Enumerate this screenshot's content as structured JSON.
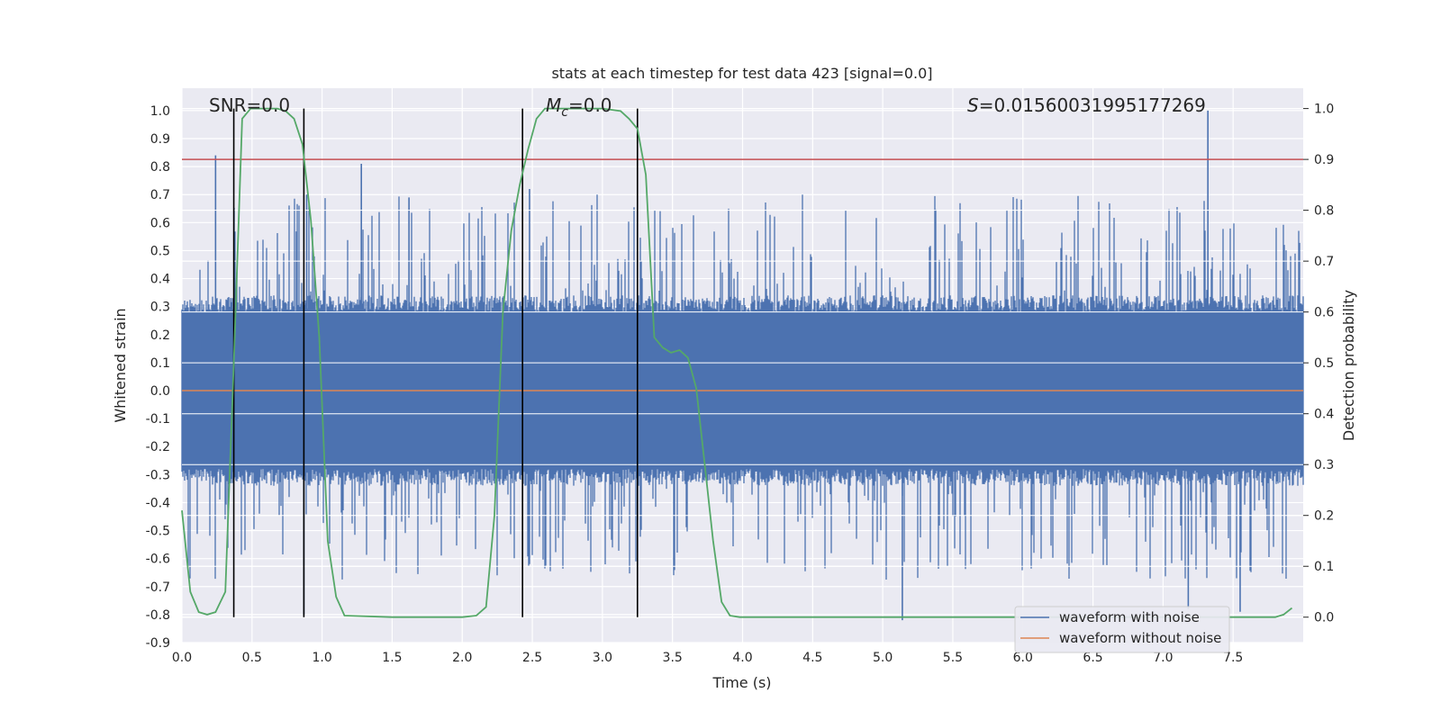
{
  "chart_data": {
    "type": "line",
    "title": "stats at each timestep for test data 423 [signal=0.0]",
    "xlabel": "Time (s)",
    "ylabel": "Whitened strain",
    "y2label": "Detection probability",
    "xlim": [
      0.0,
      8.0
    ],
    "ylim": [
      -0.9,
      1.08
    ],
    "y2lim": [
      -0.05,
      1.04
    ],
    "x_ticks": [
      "0.0",
      "0.5",
      "1.0",
      "1.5",
      "2.0",
      "2.5",
      "3.0",
      "3.5",
      "4.0",
      "4.5",
      "5.0",
      "5.5",
      "6.0",
      "6.5",
      "7.0",
      "7.5"
    ],
    "y_ticks": [
      "-0.9",
      "-0.8",
      "-0.7",
      "-0.6",
      "-0.5",
      "-0.4",
      "-0.3",
      "-0.2",
      "-0.1",
      "0.0",
      "0.1",
      "0.2",
      "0.3",
      "0.4",
      "0.5",
      "0.6",
      "0.7",
      "0.8",
      "0.9",
      "1.0"
    ],
    "y2_ticks": [
      "0.0",
      "0.1",
      "0.2",
      "0.3",
      "0.4",
      "0.5",
      "0.6",
      "0.7",
      "0.8",
      "0.9",
      "1.0"
    ],
    "grid": true,
    "annotations": {
      "snr": "SNR=0.0",
      "mc_symbol": "M",
      "mc_sub": "c",
      "mc_value": "=0.0",
      "s_symbol": "S",
      "s_value": "=0.01560031995177269"
    },
    "threshold": {
      "axis": "right",
      "value": 0.9,
      "color": "#c44e52"
    },
    "vertical_lines": [
      0.37,
      0.87,
      2.43,
      3.25
    ],
    "series": [
      {
        "name": "waveform with noise",
        "color": "#4c72b0",
        "description_stats": {
          "typical_range": [
            -0.3,
            0.3
          ]
        },
        "notable_spikes": [
          {
            "x": 0.24,
            "y": 0.84
          },
          {
            "x": 0.89,
            "y": 0.7
          },
          {
            "x": 1.28,
            "y": 0.81
          },
          {
            "x": 1.62,
            "y": 0.69
          },
          {
            "x": 2.48,
            "y": 0.72
          },
          {
            "x": 7.32,
            "y": 1.0
          },
          {
            "x": 0.87,
            "y": -0.8
          },
          {
            "x": 5.14,
            "y": -0.82
          },
          {
            "x": 7.18,
            "y": -0.78
          },
          {
            "x": 7.55,
            "y": -0.79
          }
        ]
      },
      {
        "name": "waveform without noise",
        "color": "#dd8452",
        "y_constant": 0.0
      },
      {
        "name": "detection probability",
        "axis": "right",
        "color": "#55a868",
        "x": [
          0.0,
          0.06,
          0.12,
          0.18,
          0.24,
          0.31,
          0.37,
          0.43,
          0.49,
          0.55,
          0.62,
          0.68,
          0.74,
          0.8,
          0.86,
          0.92,
          0.98,
          1.04,
          1.1,
          1.16,
          1.5,
          2.0,
          2.1,
          2.17,
          2.23,
          2.29,
          2.35,
          2.41,
          2.47,
          2.53,
          2.59,
          2.65,
          3.0,
          3.13,
          3.19,
          3.25,
          3.31,
          3.37,
          3.43,
          3.49,
          3.55,
          3.61,
          3.67,
          3.73,
          3.79,
          3.85,
          3.91,
          3.98,
          4.5,
          7.8,
          7.86,
          7.92
        ],
        "values": [
          0.21,
          0.05,
          0.01,
          0.005,
          0.01,
          0.05,
          0.5,
          0.98,
          1.0,
          1.0,
          1.0,
          1.0,
          0.995,
          0.98,
          0.93,
          0.78,
          0.55,
          0.15,
          0.04,
          0.003,
          0.0,
          0.0,
          0.003,
          0.02,
          0.2,
          0.6,
          0.76,
          0.85,
          0.92,
          0.98,
          1.0,
          1.0,
          1.0,
          0.995,
          0.98,
          0.96,
          0.87,
          0.55,
          0.53,
          0.52,
          0.525,
          0.51,
          0.45,
          0.3,
          0.15,
          0.03,
          0.003,
          0.0,
          0.0,
          0.0,
          0.005,
          0.018
        ]
      }
    ],
    "legend": {
      "placement": "lower right",
      "entries": [
        "waveform with noise",
        "waveform without noise"
      ]
    }
  }
}
